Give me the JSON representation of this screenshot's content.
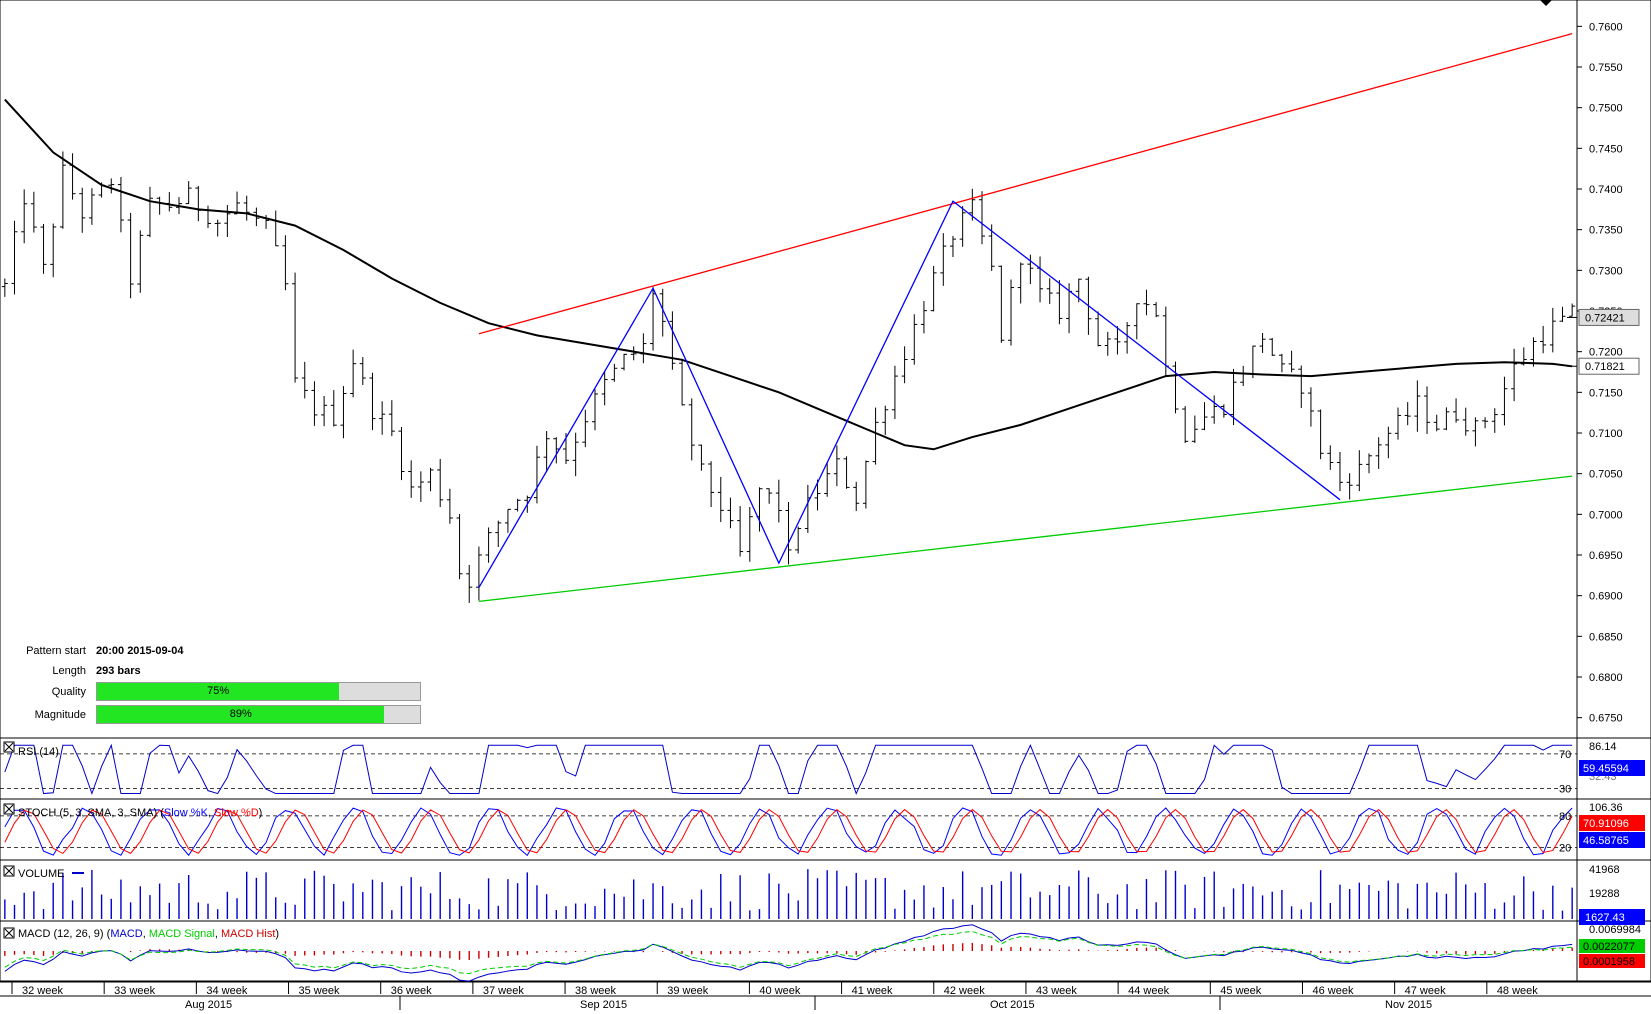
{
  "info": {
    "pattern_start_label": "Pattern start",
    "pattern_start_value": "20:00 2015-09-04",
    "length_label": "Length",
    "length_value": "293 bars",
    "quality_label": "Quality",
    "quality_value": "75%",
    "quality_fraction": 0.75,
    "magnitude_label": "Magnitude",
    "magnitude_value": "89%",
    "magnitude_fraction": 0.89
  },
  "colors": {
    "price_bars": "#000000",
    "moving_average": "#000000",
    "resistance": "#ff0000",
    "support": "#00cc00",
    "zigzag": "#0000ff",
    "rsi": "#0000cc",
    "stoch_k": "#0000ff",
    "stoch_d": "#ff0000",
    "volume": "#0000cc",
    "macd": "#0000cc",
    "macd_signal": "#00cc00",
    "macd_hist": "#cc0000",
    "quality_fill": "#22e622"
  },
  "chart_data": [
    {
      "panel": "price",
      "type": "ohlc",
      "ylim": [
        0.6725,
        0.7625
      ],
      "y_ticks": [
        "0.7600",
        "0.7550",
        "0.7500",
        "0.7450",
        "0.7400",
        "0.7350",
        "0.7300",
        "0.7250",
        "0.7200",
        "0.7150",
        "0.7100",
        "0.7050",
        "0.7000",
        "0.6950",
        "0.6900",
        "0.6850",
        "0.6800",
        "0.6750"
      ],
      "last_price_label": "0.72421",
      "ma_label": "0.71821",
      "price_path": [
        [
          0,
          0.728
        ],
        [
          2,
          0.739
        ],
        [
          4,
          0.73
        ],
        [
          6,
          0.742
        ],
        [
          8,
          0.737
        ],
        [
          11,
          0.741
        ],
        [
          13,
          0.729
        ],
        [
          15,
          0.738
        ],
        [
          17,
          0.738
        ],
        [
          19,
          0.739
        ],
        [
          22,
          0.736
        ],
        [
          24,
          0.738
        ],
        [
          27,
          0.735
        ],
        [
          28,
          0.732
        ],
        [
          29,
          0.728
        ],
        [
          30,
          0.716
        ],
        [
          32,
          0.713
        ],
        [
          34,
          0.712
        ],
        [
          36,
          0.719
        ],
        [
          38,
          0.713
        ],
        [
          40,
          0.71
        ],
        [
          42,
          0.703
        ],
        [
          44,
          0.705
        ],
        [
          46,
          0.7
        ],
        [
          47,
          0.693
        ],
        [
          48,
          0.692
        ],
        [
          50,
          0.697
        ],
        [
          52,
          0.701
        ],
        [
          54,
          0.703
        ],
        [
          56,
          0.71
        ],
        [
          58,
          0.707
        ],
        [
          60,
          0.712
        ],
        [
          62,
          0.716
        ],
        [
          64,
          0.719
        ],
        [
          66,
          0.7205
        ],
        [
          67,
          0.7275
        ],
        [
          68,
          0.7235
        ],
        [
          69,
          0.7175
        ],
        [
          70,
          0.7125
        ],
        [
          72,
          0.705
        ],
        [
          74,
          0.701
        ],
        [
          76,
          0.695
        ],
        [
          78,
          0.703
        ],
        [
          80,
          0.701
        ],
        [
          81,
          0.6945
        ],
        [
          82,
          0.699
        ],
        [
          84,
          0.703
        ],
        [
          86,
          0.706
        ],
        [
          88,
          0.702
        ],
        [
          90,
          0.711
        ],
        [
          92,
          0.717
        ],
        [
          94,
          0.723
        ],
        [
          96,
          0.729
        ],
        [
          98,
          0.7345
        ],
        [
          100,
          0.7375
        ],
        [
          102,
          0.73
        ],
        [
          103,
          0.722
        ],
        [
          105,
          0.732
        ],
        [
          107,
          0.727
        ],
        [
          109,
          0.725
        ],
        [
          111,
          0.729
        ],
        [
          113,
          0.721
        ],
        [
          115,
          0.72
        ],
        [
          117,
          0.727
        ],
        [
          119,
          0.725
        ],
        [
          120,
          0.718
        ],
        [
          122,
          0.71
        ],
        [
          124,
          0.712
        ],
        [
          126,
          0.7135
        ],
        [
          128,
          0.718
        ],
        [
          130,
          0.722
        ],
        [
          132,
          0.7175
        ],
        [
          134,
          0.716
        ],
        [
          136,
          0.708
        ],
        [
          138,
          0.704
        ],
        [
          140,
          0.7055
        ],
        [
          142,
          0.709
        ],
        [
          144,
          0.711
        ],
        [
          146,
          0.7135
        ],
        [
          148,
          0.711
        ],
        [
          150,
          0.7125
        ],
        [
          152,
          0.7105
        ],
        [
          154,
          0.713
        ],
        [
          156,
          0.718
        ],
        [
          158,
          0.721
        ],
        [
          159,
          0.722
        ],
        [
          160,
          0.723
        ],
        [
          162,
          0.7245
        ]
      ],
      "moving_average": {
        "name": "",
        "points": [
          [
            0,
            0.751
          ],
          [
            5,
            0.7445
          ],
          [
            10,
            0.7405
          ],
          [
            15,
            0.7385
          ],
          [
            20,
            0.7375
          ],
          [
            25,
            0.737
          ],
          [
            30,
            0.7355
          ],
          [
            35,
            0.7325
          ],
          [
            40,
            0.729
          ],
          [
            45,
            0.726
          ],
          [
            50,
            0.7235
          ],
          [
            55,
            0.722
          ],
          [
            60,
            0.721
          ],
          [
            65,
            0.72
          ],
          [
            70,
            0.719
          ],
          [
            75,
            0.717
          ],
          [
            80,
            0.715
          ],
          [
            85,
            0.7125
          ],
          [
            90,
            0.71
          ],
          [
            93,
            0.7085
          ],
          [
            96,
            0.708
          ],
          [
            100,
            0.7095
          ],
          [
            105,
            0.711
          ],
          [
            110,
            0.713
          ],
          [
            115,
            0.715
          ],
          [
            120,
            0.717
          ],
          [
            125,
            0.7175
          ],
          [
            130,
            0.7172
          ],
          [
            135,
            0.717
          ],
          [
            140,
            0.7175
          ],
          [
            145,
            0.718
          ],
          [
            150,
            0.7185
          ],
          [
            155,
            0.7187
          ],
          [
            160,
            0.7185
          ],
          [
            162,
            0.7182
          ]
        ]
      },
      "resistance_line": [
        [
          49,
          0.7222
        ],
        [
          162,
          0.7591
        ]
      ],
      "support_line": [
        [
          49,
          0.6893
        ],
        [
          162,
          0.7047
        ]
      ],
      "zigzag": [
        [
          49,
          0.691
        ],
        [
          67,
          0.7278
        ],
        [
          80,
          0.694
        ],
        [
          98,
          0.7385
        ],
        [
          138,
          0.7018
        ]
      ],
      "x_week_labels": [
        "32 week",
        "33 week",
        "34 week",
        "35 week",
        "36 week",
        "37 week",
        "38 week",
        "39 week",
        "40 week",
        "41 week",
        "42 week",
        "43 week",
        "44 week",
        "45 week",
        "46 week",
        "47 week",
        "48 week"
      ],
      "x_month_labels": [
        "Aug 2015",
        "Sep 2015",
        "Oct 2015",
        "Nov 2015"
      ]
    },
    {
      "panel": "rsi",
      "type": "line",
      "title": "RSI (14)",
      "ylim": [
        20,
        86.14
      ],
      "levels": [
        70,
        30
      ],
      "top_label": "86.14",
      "level_labels": [
        "70",
        "30"
      ],
      "hidden_label": "32.43",
      "current_label": "59.45594"
    },
    {
      "panel": "stoch",
      "type": "line",
      "title": "STOCH (5, 3, SMA, 3, SMA)",
      "legend": [
        "Slow %K",
        "Slow %D"
      ],
      "ylim": [
        0,
        106.36
      ],
      "levels": [
        80,
        20
      ],
      "top_label": "106.36",
      "level_labels": [
        "80",
        "20"
      ],
      "current_k_label": "70.91096",
      "current_d_label": "46.58765"
    },
    {
      "panel": "volume",
      "type": "bar",
      "title": "VOLUME",
      "y_labels": [
        "41968",
        "19288"
      ],
      "current_label": "1627.43"
    },
    {
      "panel": "macd",
      "type": "line",
      "title": "MACD (12, 26, 9)",
      "legend": [
        "MACD",
        "MACD Signal",
        "MACD Hist"
      ],
      "top_label": "0.0069984",
      "signal_label": "0.0022077",
      "hist_label": "0.0001958"
    }
  ]
}
